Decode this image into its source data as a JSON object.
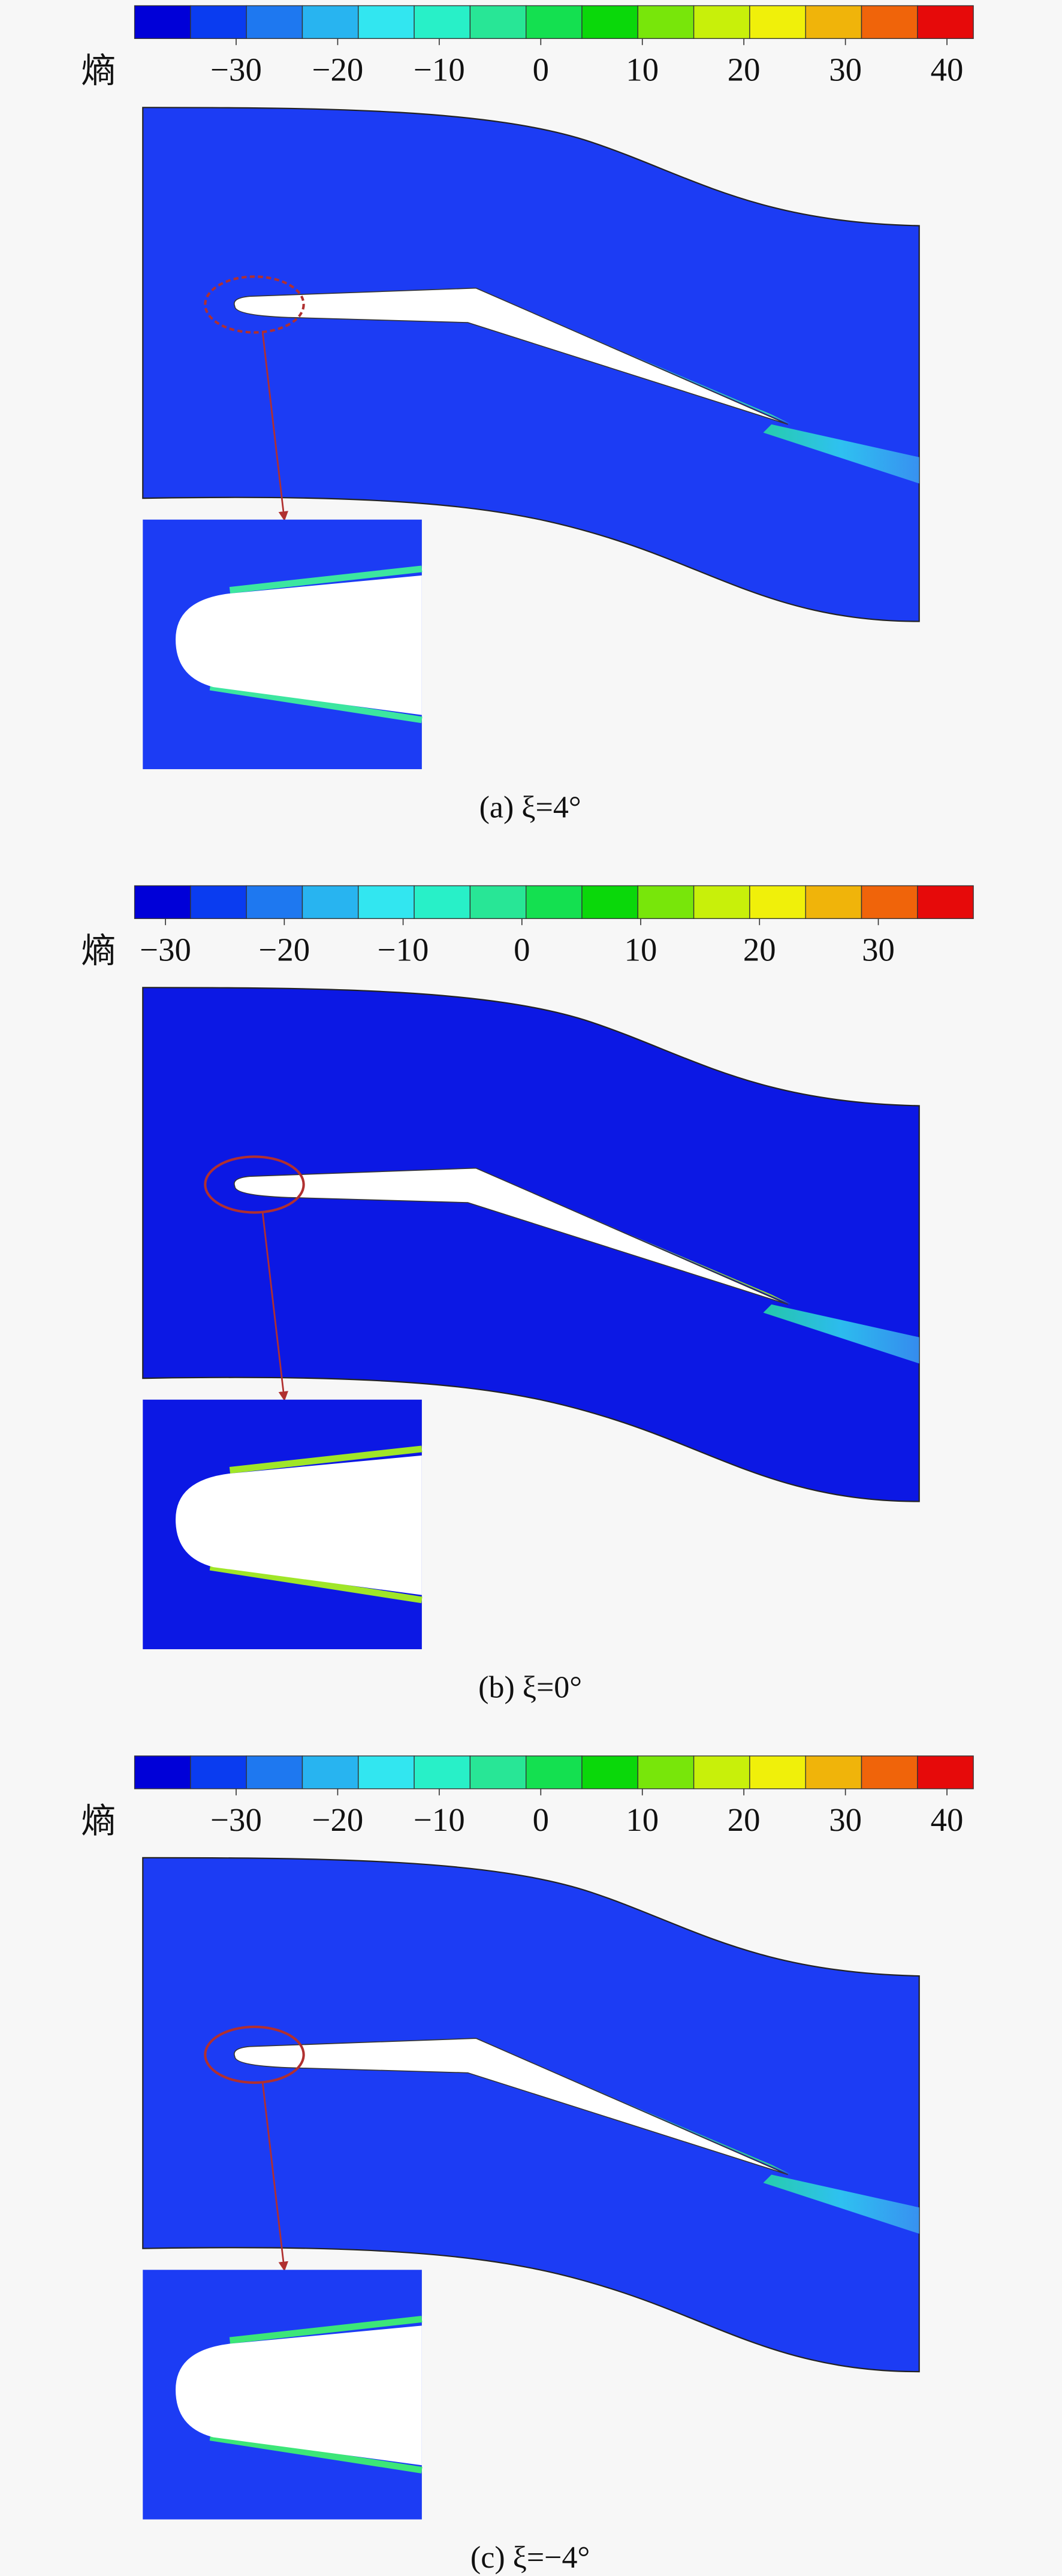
{
  "colorbar_colors": [
    "#0000d8",
    "#0a3cf0",
    "#1e78f0",
    "#28b4f0",
    "#32e6f0",
    "#28f0c8",
    "#28e696",
    "#14e050",
    "#0ad80a",
    "#78e60a",
    "#c8f00a",
    "#f0f00a",
    "#f0b40a",
    "#f0640a",
    "#e60a0a"
  ],
  "panels": [
    {
      "colorbar_label": "熵",
      "range": [
        -40,
        42.6
      ],
      "ticks": [
        {
          "value": -30,
          "label": "−30"
        },
        {
          "value": -20,
          "label": "−20"
        },
        {
          "value": -10,
          "label": "−10"
        },
        0,
        10,
        20,
        30,
        40
      ],
      "caption": "(a) ξ=4°"
    },
    {
      "colorbar_label": "熵",
      "range": [
        -32.6,
        38
      ],
      "ticks": [
        {
          "value": -30,
          "label": "−30"
        },
        {
          "value": -20,
          "label": "−20"
        },
        {
          "value": -10,
          "label": "−10"
        },
        0,
        10,
        20,
        30
      ],
      "caption": "(b) ξ=0°"
    },
    {
      "colorbar_label": "熵",
      "range": [
        -40,
        42.6
      ],
      "ticks": [
        {
          "value": -30,
          "label": "−30"
        },
        {
          "value": -20,
          "label": "−20"
        },
        {
          "value": -10,
          "label": "−10"
        },
        0,
        10,
        20,
        30,
        40
      ],
      "caption": "(c) ξ=−4°"
    }
  ]
}
